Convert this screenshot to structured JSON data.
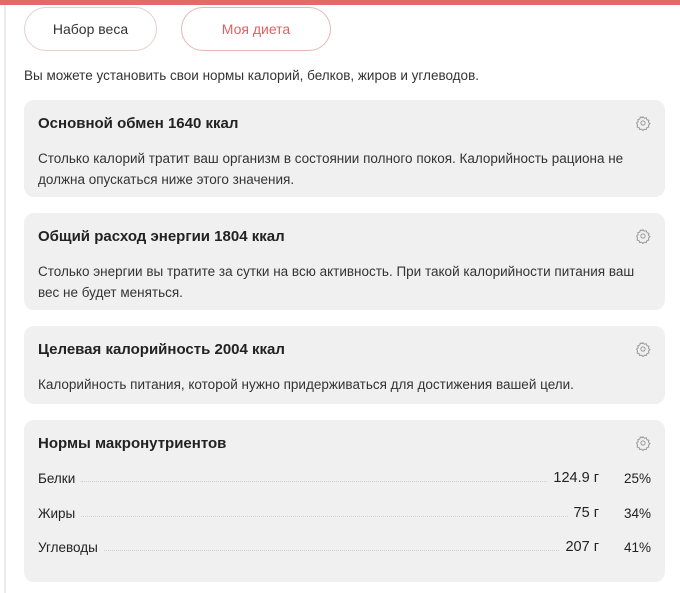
{
  "tabs": [
    {
      "label": "Набор веса"
    },
    {
      "label": "Моя диета"
    }
  ],
  "intro": "Вы можете установить свои нормы калорий, белков, жиров и углеводов.",
  "cards": [
    {
      "title": "Основной обмен 1640 ккал",
      "text": "Столько калорий тратит ваш организм в состоянии полного покоя. Калорийность рациона не должна опускаться ниже этого значения."
    },
    {
      "title": "Общий расход энергии 1804 ккал",
      "text": "Столько энергии вы тратите за сутки на всю активность. При такой калорийности питания ваш вес не будет меняться."
    },
    {
      "title": "Целевая калорийность 2004 ккал",
      "text": "Калорийность питания, которой нужно придерживаться для достижения вашей цели."
    }
  ],
  "macros": {
    "title": "Нормы макронутриентов",
    "rows": [
      {
        "label": "Белки",
        "amount": "124.9 г",
        "percent": "25%"
      },
      {
        "label": "Жиры",
        "amount": "75 г",
        "percent": "34%"
      },
      {
        "label": "Углеводы",
        "amount": "207 г",
        "percent": "41%"
      }
    ]
  },
  "colors": {
    "accent": "#e46a6a",
    "card_bg": "#f0f0f1"
  },
  "icons": {
    "settings": "gear-icon"
  }
}
